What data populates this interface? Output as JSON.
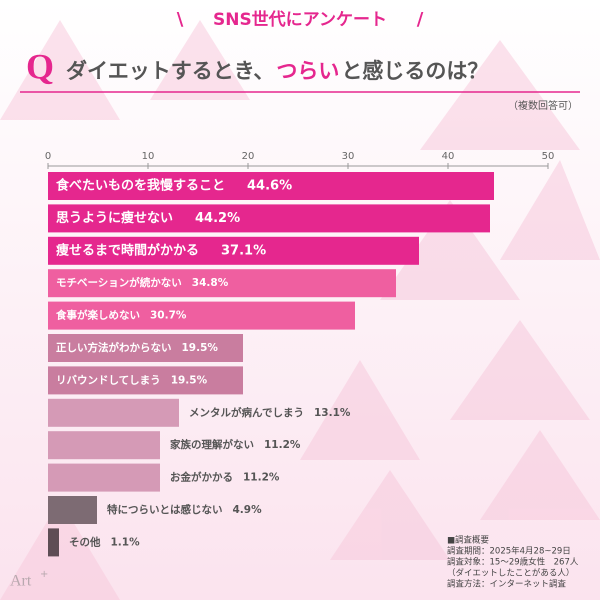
{
  "chart_data": {
    "type": "bar",
    "subtitle": "SNS世代にアンケート",
    "q_mark": "Q",
    "title": [
      "ダイエットするとき、",
      "つらい",
      "と感じるのは？"
    ],
    "note": "（複数回答可）",
    "categories": [
      "食べたいものを我慢すること",
      "思うように痩せない",
      "痩せるまで時間がかかる",
      "モチベーションが続かない",
      "食事が楽しめない",
      "正しい方法がわからない",
      "リバウンドしてしまう",
      "メンタルが病んでしまう",
      "家族の理解がない",
      "お金がかかる",
      "特につらいとは感じない",
      "その他"
    ],
    "values": [
      44.6,
      44.2,
      37.1,
      34.8,
      30.7,
      19.5,
      19.5,
      13.1,
      11.2,
      11.2,
      4.9,
      1.1
    ],
    "value_labels": [
      "44.6%",
      "44.2%",
      "37.1%",
      "34.8%",
      "30.7%",
      "19.5%",
      "19.5%",
      "13.1%",
      "11.2%",
      "11.2%",
      "4.9%",
      "1.1%"
    ],
    "colors": [
      "#e5278e",
      "#e5278e",
      "#e5278e",
      "#ef5fa0",
      "#ef5fa0",
      "#c97d9f",
      "#c97d9f",
      "#d59ab6",
      "#d59ab6",
      "#d59ab6",
      "#7d6b73",
      "#5e4d55"
    ],
    "xlim": [
      0,
      50
    ],
    "xticks": [
      0,
      10,
      20,
      30,
      40,
      50
    ],
    "survey": [
      "■調査概要",
      "調査期間：2025年4月28~29日",
      "調査対象：15～29歳女性　267人",
      "（ダイエットしたことがある人）",
      "調査方法：インターネット調査"
    ],
    "logo": [
      "Art",
      "+"
    ]
  }
}
